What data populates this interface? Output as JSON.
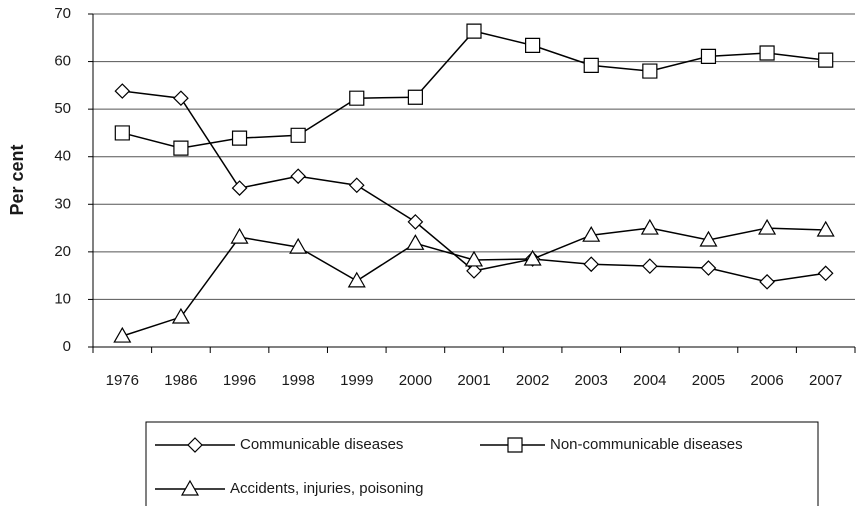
{
  "chart_data": {
    "type": "line",
    "y_label": "Per cent",
    "categories": [
      "1976",
      "1986",
      "1996",
      "1998",
      "1999",
      "2000",
      "2001",
      "2002",
      "2003",
      "2004",
      "2005",
      "2006",
      "2007"
    ],
    "series": [
      {
        "name": "Communicable diseases",
        "color": "#000000",
        "marker": "diamond",
        "values": [
          53.8,
          52.3,
          33.4,
          35.9,
          34.0,
          26.3,
          16.0,
          18.5,
          17.4,
          17.0,
          16.6,
          13.7,
          15.5
        ]
      },
      {
        "name": "Non-communicable diseases",
        "color": "#000000",
        "marker": "square",
        "values": [
          45.0,
          41.8,
          43.9,
          44.5,
          52.3,
          52.5,
          66.4,
          63.4,
          59.2,
          58.0,
          61.1,
          61.8,
          60.3
        ]
      },
      {
        "name": "Accidents, injuries, poisoning",
        "color": "#000000",
        "marker": "triangle",
        "values": [
          2.3,
          6.3,
          23.1,
          21.0,
          13.9,
          21.8,
          18.3,
          18.5,
          23.5,
          25.0,
          22.5,
          25.0,
          24.6
        ]
      }
    ],
    "ylim": [
      0,
      70
    ],
    "yticks": [
      0,
      10,
      20,
      30,
      40,
      50,
      60,
      70
    ],
    "grid": true
  }
}
